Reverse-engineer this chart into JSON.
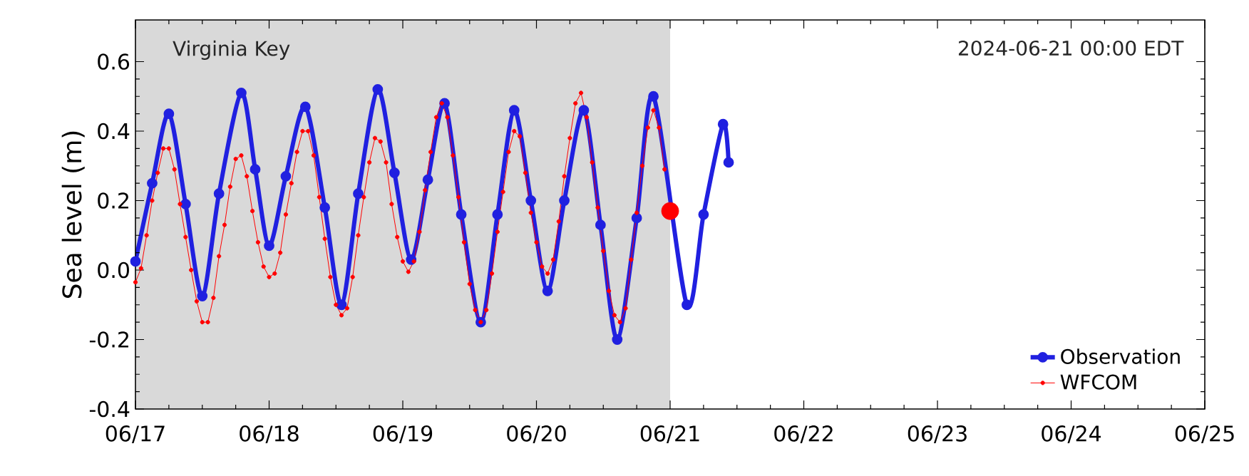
{
  "chart_data": {
    "type": "line",
    "ylabel": "Sea level (m)",
    "annotations": [
      "Virginia Key",
      "2024-06-21 00:00 EDT"
    ],
    "xlim": [
      "2024-06-17",
      "2024-06-25"
    ],
    "xticks": [
      {
        "value": "2024-06-17",
        "label": "06/17"
      },
      {
        "value": "2024-06-18",
        "label": "06/18"
      },
      {
        "value": "2024-06-19",
        "label": "06/19"
      },
      {
        "value": "2024-06-20",
        "label": "06/20"
      },
      {
        "value": "2024-06-21",
        "label": "06/21"
      },
      {
        "value": "2024-06-22",
        "label": "06/22"
      },
      {
        "value": "2024-06-23",
        "label": "06/23"
      },
      {
        "value": "2024-06-24",
        "label": "06/24"
      },
      {
        "value": "2024-06-25",
        "label": "06/25"
      }
    ],
    "ylim": [
      -0.4,
      0.72
    ],
    "yticks": [
      -0.4,
      -0.2,
      {
        "value": 0,
        "label": "0.0"
      },
      0.2,
      0.4,
      0.6
    ],
    "bands": [
      {
        "axis": "x",
        "from": "2024-06-17",
        "to": "2024-06-21",
        "color": "#d9d9d9"
      }
    ],
    "legend": "bottom right",
    "series": [
      {
        "name": "Observation",
        "color": "#2020e0",
        "marker": "circle",
        "x": [
          "2024-06-17T00:00",
          "2024-06-17T03:00",
          "2024-06-17T06:00",
          "2024-06-17T09:00",
          "2024-06-17T12:00",
          "2024-06-17T15:00",
          "2024-06-17T19:00",
          "2024-06-17T21:30",
          "2024-06-18T00:00",
          "2024-06-18T03:00",
          "2024-06-18T06:30",
          "2024-06-18T10:00",
          "2024-06-18T13:00",
          "2024-06-18T16:00",
          "2024-06-18T19:30",
          "2024-06-18T22:30",
          "2024-06-19T01:30",
          "2024-06-19T04:30",
          "2024-06-19T07:30",
          "2024-06-19T10:30",
          "2024-06-19T14:00",
          "2024-06-19T17:00",
          "2024-06-19T20:00",
          "2024-06-19T23:00",
          "2024-06-20T02:00",
          "2024-06-20T05:00",
          "2024-06-20T08:30",
          "2024-06-20T11:30",
          "2024-06-20T14:30",
          "2024-06-20T18:00",
          "2024-06-20T21:00",
          "2024-06-21T03:00",
          "2024-06-21T06:00",
          "2024-06-21T09:30",
          "2024-06-21T10:30"
        ],
        "values": [
          0.025,
          0.25,
          0.45,
          0.19,
          -0.075,
          0.22,
          0.51,
          0.29,
          0.07,
          0.27,
          0.47,
          0.18,
          -0.1,
          0.22,
          0.52,
          0.28,
          0.03,
          0.26,
          0.48,
          0.16,
          -0.15,
          0.16,
          0.46,
          0.2,
          -0.06,
          0.2,
          0.46,
          0.13,
          -0.2,
          0.15,
          0.5,
          -0.1,
          0.16,
          0.42,
          0.31
        ]
      },
      {
        "name": "WFCOM",
        "color": "#ff0000",
        "marker": "circle",
        "x": [
          "2024-06-17T00:00",
          "2024-06-17T01:00",
          "2024-06-17T02:00",
          "2024-06-17T03:00",
          "2024-06-17T04:00",
          "2024-06-17T05:00",
          "2024-06-17T06:00",
          "2024-06-17T07:00",
          "2024-06-17T08:00",
          "2024-06-17T09:00",
          "2024-06-17T10:00",
          "2024-06-17T11:00",
          "2024-06-17T12:00",
          "2024-06-17T13:00",
          "2024-06-17T14:00",
          "2024-06-17T15:00",
          "2024-06-17T16:00",
          "2024-06-17T17:00",
          "2024-06-17T18:00",
          "2024-06-17T19:00",
          "2024-06-17T20:00",
          "2024-06-17T21:00",
          "2024-06-17T22:00",
          "2024-06-17T23:00",
          "2024-06-18T00:00",
          "2024-06-18T01:00",
          "2024-06-18T02:00",
          "2024-06-18T03:00",
          "2024-06-18T04:00",
          "2024-06-18T05:00",
          "2024-06-18T06:00",
          "2024-06-18T07:00",
          "2024-06-18T08:00",
          "2024-06-18T09:00",
          "2024-06-18T10:00",
          "2024-06-18T11:00",
          "2024-06-18T12:00",
          "2024-06-18T13:00",
          "2024-06-18T14:00",
          "2024-06-18T15:00",
          "2024-06-18T16:00",
          "2024-06-18T17:00",
          "2024-06-18T18:00",
          "2024-06-18T19:00",
          "2024-06-18T20:00",
          "2024-06-18T21:00",
          "2024-06-18T22:00",
          "2024-06-18T23:00",
          "2024-06-19T00:00",
          "2024-06-19T01:00",
          "2024-06-19T02:00",
          "2024-06-19T03:00",
          "2024-06-19T04:00",
          "2024-06-19T05:00",
          "2024-06-19T06:00",
          "2024-06-19T07:00",
          "2024-06-19T08:00",
          "2024-06-19T09:00",
          "2024-06-19T10:00",
          "2024-06-19T11:00",
          "2024-06-19T12:00",
          "2024-06-19T13:00",
          "2024-06-19T14:00",
          "2024-06-19T15:00",
          "2024-06-19T16:00",
          "2024-06-19T17:00",
          "2024-06-19T18:00",
          "2024-06-19T19:00",
          "2024-06-19T20:00",
          "2024-06-19T21:00",
          "2024-06-19T22:00",
          "2024-06-19T23:00",
          "2024-06-20T00:00",
          "2024-06-20T01:00",
          "2024-06-20T02:00",
          "2024-06-20T03:00",
          "2024-06-20T04:00",
          "2024-06-20T05:00",
          "2024-06-20T06:00",
          "2024-06-20T07:00",
          "2024-06-20T08:00",
          "2024-06-20T09:00",
          "2024-06-20T10:00",
          "2024-06-20T11:00",
          "2024-06-20T12:00",
          "2024-06-20T13:00",
          "2024-06-20T14:00",
          "2024-06-20T15:00",
          "2024-06-20T16:00",
          "2024-06-20T17:00",
          "2024-06-20T18:00",
          "2024-06-20T19:00",
          "2024-06-20T20:00",
          "2024-06-20T21:00",
          "2024-06-20T22:00",
          "2024-06-20T23:00"
        ],
        "values": [
          -0.035,
          0.005,
          0.1,
          0.2,
          0.28,
          0.35,
          0.35,
          0.29,
          0.19,
          0.095,
          0.0,
          -0.09,
          -0.15,
          -0.15,
          -0.08,
          0.04,
          0.13,
          0.24,
          0.32,
          0.33,
          0.27,
          0.17,
          0.08,
          0.01,
          -0.02,
          -0.01,
          0.05,
          0.16,
          0.25,
          0.34,
          0.4,
          0.4,
          0.33,
          0.21,
          0.09,
          -0.02,
          -0.1,
          -0.13,
          -0.11,
          -0.02,
          0.1,
          0.21,
          0.31,
          0.38,
          0.37,
          0.31,
          0.19,
          0.095,
          0.025,
          -0.005,
          0.025,
          0.11,
          0.23,
          0.34,
          0.44,
          0.48,
          0.44,
          0.33,
          0.21,
          0.08,
          -0.04,
          -0.115,
          -0.15,
          -0.115,
          -0.01,
          0.11,
          0.225,
          0.34,
          0.4,
          0.385,
          0.28,
          0.165,
          0.08,
          0.01,
          -0.01,
          0.03,
          0.14,
          0.27,
          0.38,
          0.48,
          0.51,
          0.44,
          0.31,
          0.18,
          0.055,
          -0.06,
          -0.13,
          -0.15,
          -0.11,
          0.03,
          0.165,
          0.3,
          0.41,
          0.46,
          0.41,
          0.29
        ]
      },
      {
        "type": "scatter",
        "color": "#ff0000",
        "marker": "circle",
        "x": [
          "2024-06-21T00:00"
        ],
        "values": [
          0.17
        ]
      }
    ]
  }
}
